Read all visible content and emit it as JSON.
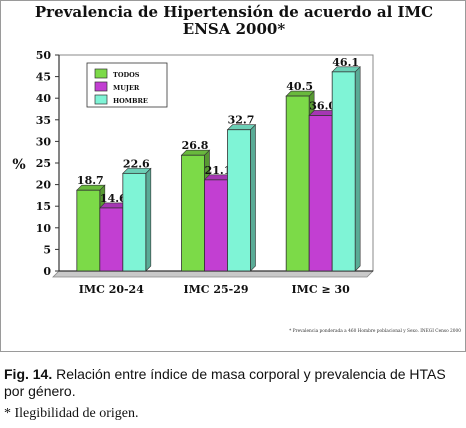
{
  "chart_data": {
    "type": "bar",
    "title_lines": [
      "Prevalencia de Hipertensión de acuerdo al IMC",
      "ENSA 2000*"
    ],
    "ylabel": "%",
    "ylim": [
      0,
      50
    ],
    "yticks": [
      0,
      5,
      10,
      15,
      20,
      25,
      30,
      35,
      40,
      45,
      50
    ],
    "categories": [
      "IMC 20-24",
      "IMC 25-29",
      "IMC ≥ 30"
    ],
    "series": [
      {
        "name": "TODOS",
        "color": "#7CDA48",
        "values": [
          18.7,
          26.8,
          40.5
        ]
      },
      {
        "name": "MUJER",
        "color": "#C23FD2",
        "values": [
          14.6,
          21.1,
          36.0
        ]
      },
      {
        "name": "HOMBRE",
        "color": "#7FF4D6",
        "values": [
          22.6,
          32.7,
          46.1
        ]
      }
    ],
    "value_labels": [
      [
        "18.7",
        "26.8",
        "40.5"
      ],
      [
        "14.6",
        "21.1",
        "36.0"
      ],
      [
        "22.6",
        "32.7",
        "46.1"
      ]
    ],
    "legend_position": "top-left",
    "grid": false,
    "footnote": "* Prevalencia ponderada a 460 Hombre poblacional y Sexo. INEGI Censo 2000"
  },
  "caption": {
    "label": "Fig. 14.",
    "text": " Relación entre índice de masa corporal y prevalencia de HTAS por género."
  },
  "note": "* Ilegibilidad de origen."
}
